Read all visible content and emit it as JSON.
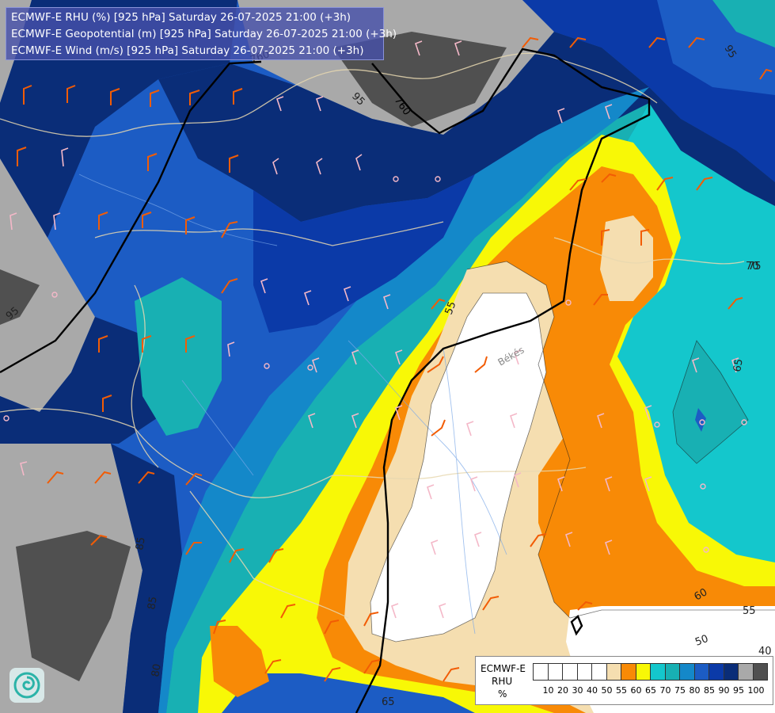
{
  "header": {
    "line1": "ECMWF-E RHU (%) [925 hPa] Saturday 26-07-2025 21:00 (+3h)",
    "line2": "ECMWF-E Geopotential (m) [925 hPa] Saturday 26-07-2025 21:00 (+3h)",
    "line3": "ECMWF-E Wind (m/s) [925 hPa] Saturday 26-07-2025 21:00 (+3h)"
  },
  "legend": {
    "title": "ECMWF-E",
    "variable": "RHU",
    "unit": "%",
    "swatch_colors": [
      "#ffffff",
      "#ffffff",
      "#ffffff",
      "#ffffff",
      "#ffffff",
      "#f5deb0",
      "#f88a06",
      "#f8f806",
      "#14c7cc",
      "#18b0b3",
      "#1488c9",
      "#1c5cc4",
      "#0b3aa8",
      "#0a2d78",
      "#a9a9a9",
      "#505050"
    ],
    "ticks": [
      "10",
      "20",
      "30",
      "40",
      "50",
      "55",
      "60",
      "65",
      "70",
      "75",
      "80",
      "85",
      "90",
      "95",
      "100"
    ]
  },
  "contour_labels": {
    "geopotential": [
      "760",
      "760"
    ],
    "rhu": [
      "95",
      "95",
      "95",
      "85",
      "85",
      "80",
      "75",
      "70",
      "65",
      "65",
      "60",
      "55",
      "55",
      "50",
      "40",
      "50",
      "55",
      "60"
    ]
  },
  "place_labels": [
    "Békés"
  ],
  "colors": {
    "rhu_95_100": "#505050",
    "rhu_90_95": "#a9a9a9",
    "rhu_85_90": "#0a2d78",
    "rhu_80_85": "#0b3aa8",
    "rhu_75_80": "#1c5cc4",
    "rhu_70_75": "#1488c9",
    "rhu_65_70": "#18b0b3",
    "rhu_60_65": "#14c7cc",
    "rhu_55_60": "#f8f806",
    "rhu_50_55": "#f88a06",
    "rhu_40_50": "#f5deb0",
    "rhu_below_40": "#ffffff",
    "wind_barb_strong": "#f25c05",
    "wind_barb_light": "#f4b8c8",
    "geopotential_contour": "#000000",
    "borders": "#e8d8b0"
  }
}
